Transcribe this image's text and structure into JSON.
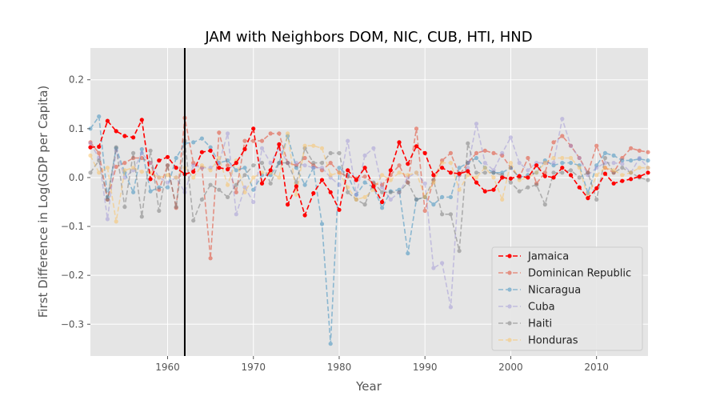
{
  "chart_data": {
    "type": "line",
    "title": "JAM with Neighbors DOM, NIC, CUB, HTI, HND",
    "xlabel": "Year",
    "ylabel": "First Difference in Log(GDP per Capita)",
    "xlim": [
      1951,
      2016
    ],
    "ylim": [
      -0.365,
      0.265
    ],
    "xticks": [
      1960,
      1970,
      1980,
      1990,
      2000,
      2010
    ],
    "yticks": [
      -0.3,
      -0.2,
      -0.1,
      0.0,
      0.1,
      0.2
    ],
    "xtick_labels": [
      "1960",
      "1970",
      "1980",
      "1990",
      "2000",
      "2010"
    ],
    "ytick_labels": [
      "−0.3",
      "−0.2",
      "−0.1",
      "0.0",
      "0.1",
      "0.2"
    ],
    "vline_x": 1962,
    "grid": true,
    "legend_position": "lower-right",
    "x": [
      1951,
      1952,
      1953,
      1954,
      1955,
      1956,
      1957,
      1958,
      1959,
      1960,
      1961,
      1962,
      1963,
      1964,
      1965,
      1966,
      1967,
      1968,
      1969,
      1970,
      1971,
      1972,
      1973,
      1974,
      1975,
      1976,
      1977,
      1978,
      1979,
      1980,
      1981,
      1982,
      1983,
      1984,
      1985,
      1986,
      1987,
      1988,
      1989,
      1990,
      1991,
      1992,
      1993,
      1994,
      1995,
      1996,
      1997,
      1998,
      1999,
      2000,
      2001,
      2002,
      2003,
      2004,
      2005,
      2006,
      2007,
      2008,
      2009,
      2010,
      2011,
      2012,
      2013,
      2014,
      2015,
      2016
    ],
    "series": [
      {
        "name": "Jamaica",
        "color": "#ff0000",
        "opacity": 1.0,
        "values": [
          0.062,
          0.063,
          0.116,
          0.095,
          0.085,
          0.082,
          0.118,
          -0.003,
          0.035,
          0.042,
          0.02,
          0.007,
          0.012,
          0.052,
          0.055,
          0.02,
          0.017,
          0.03,
          0.058,
          0.1,
          -0.012,
          0.015,
          0.068,
          -0.055,
          -0.018,
          -0.077,
          -0.032,
          -0.005,
          -0.03,
          -0.066,
          0.015,
          -0.005,
          0.02,
          -0.018,
          -0.05,
          0.015,
          0.072,
          0.028,
          0.064,
          0.05,
          0.005,
          0.02,
          0.01,
          0.008,
          0.013,
          -0.01,
          -0.028,
          -0.025,
          0.0,
          -0.002,
          0.003,
          0.0,
          0.025,
          0.003,
          0.0,
          0.02,
          0.005,
          -0.02,
          -0.042,
          -0.022,
          0.008,
          -0.012,
          -0.007,
          -0.003,
          0.002,
          0.01
        ]
      },
      {
        "name": "Dominican Republic",
        "color": "#e24a33",
        "opacity": 0.55,
        "values": [
          0.072,
          0.05,
          -0.045,
          0.022,
          0.03,
          0.04,
          0.04,
          0.03,
          -0.025,
          0.025,
          -0.062,
          0.122,
          0.03,
          0.02,
          -0.165,
          0.092,
          0.025,
          -0.03,
          0.075,
          0.075,
          0.075,
          0.09,
          0.09,
          0.03,
          0.025,
          0.04,
          0.025,
          0.015,
          0.03,
          0.01,
          0.002,
          -0.002,
          0.002,
          -0.012,
          -0.015,
          0.005,
          0.025,
          -0.01,
          0.1,
          -0.068,
          -0.005,
          0.035,
          0.05,
          0.005,
          0.03,
          0.05,
          0.055,
          0.05,
          0.045,
          0.02,
          0.0,
          0.04,
          -0.012,
          0.01,
          0.072,
          0.085,
          0.065,
          0.04,
          0.01,
          0.065,
          0.02,
          0.01,
          0.04,
          0.06,
          0.055,
          0.052
        ]
      },
      {
        "name": "Nicaragua",
        "color": "#348abd",
        "opacity": 0.5,
        "values": [
          0.1,
          0.125,
          -0.04,
          0.06,
          0.01,
          -0.03,
          0.058,
          -0.028,
          -0.02,
          -0.02,
          0.04,
          0.07,
          0.072,
          0.08,
          0.062,
          0.03,
          0.035,
          0.015,
          0.02,
          -0.025,
          0.005,
          0.005,
          0.03,
          0.085,
          0.02,
          -0.015,
          0.02,
          -0.095,
          -0.34,
          0.02,
          0.005,
          -0.035,
          -0.01,
          -0.02,
          -0.062,
          -0.028,
          -0.025,
          -0.155,
          -0.045,
          -0.04,
          -0.055,
          -0.04,
          -0.04,
          0.02,
          0.03,
          0.04,
          0.02,
          0.01,
          0.01,
          0.02,
          0.0,
          0.005,
          0.01,
          0.035,
          0.025,
          0.03,
          0.03,
          0.025,
          -0.032,
          0.025,
          0.05,
          0.045,
          0.035,
          0.035,
          0.038,
          0.035
        ]
      },
      {
        "name": "Cuba",
        "color": "#988ed5",
        "opacity": 0.45,
        "values": [
          0.07,
          0.04,
          -0.085,
          0.055,
          0.0,
          0.015,
          0.05,
          0.03,
          0.0,
          -0.01,
          0.0,
          -0.03,
          0.025,
          0.02,
          0.02,
          0.03,
          0.09,
          -0.075,
          -0.02,
          -0.05,
          0.06,
          0.03,
          0.06,
          0.03,
          0.03,
          0.025,
          0.02,
          0.02,
          0.0,
          -0.015,
          0.075,
          -0.035,
          0.045,
          0.06,
          -0.02,
          -0.045,
          -0.03,
          0.0,
          0.01,
          -0.012,
          -0.185,
          -0.175,
          -0.265,
          0.005,
          0.02,
          0.11,
          0.03,
          0.015,
          0.05,
          0.082,
          0.03,
          0.015,
          0.03,
          0.03,
          0.03,
          0.12,
          0.065,
          0.04,
          0.005,
          0.02,
          0.03,
          0.03,
          0.028,
          0.01,
          0.04,
          0.02
        ]
      },
      {
        "name": "Haiti",
        "color": "#777777",
        "opacity": 0.5,
        "values": [
          0.01,
          0.035,
          -0.045,
          0.062,
          -0.06,
          0.05,
          -0.08,
          0.055,
          -0.068,
          0.025,
          -0.06,
          0.075,
          -0.088,
          -0.045,
          -0.015,
          -0.025,
          -0.04,
          -0.015,
          0.005,
          0.025,
          0.03,
          -0.012,
          0.03,
          0.03,
          -0.01,
          0.06,
          0.03,
          0.03,
          0.05,
          0.05,
          -0.03,
          -0.045,
          -0.055,
          -0.01,
          -0.03,
          -0.03,
          -0.03,
          -0.01,
          -0.045,
          -0.04,
          -0.005,
          -0.075,
          -0.075,
          -0.15,
          0.07,
          0.01,
          0.01,
          0.01,
          0.005,
          -0.01,
          -0.028,
          -0.02,
          -0.015,
          -0.055,
          0.01,
          0.01,
          0.015,
          0.0,
          0.01,
          -0.045,
          0.04,
          0.01,
          0.02,
          0.01,
          0.0,
          -0.005
        ]
      },
      {
        "name": "Honduras",
        "color": "#fbc15e",
        "opacity": 0.5,
        "values": [
          0.045,
          0.01,
          0.02,
          -0.09,
          0.015,
          0.02,
          0.012,
          0.01,
          0.0,
          0.005,
          0.0,
          0.02,
          0.0,
          0.025,
          0.015,
          0.04,
          -0.015,
          0.035,
          -0.03,
          0.0,
          0.01,
          0.01,
          0.0,
          0.09,
          -0.035,
          0.065,
          0.065,
          0.06,
          0.005,
          0.01,
          -0.02,
          -0.045,
          -0.04,
          -0.025,
          0.005,
          -0.005,
          0.01,
          0.005,
          0.01,
          -0.04,
          -0.01,
          0.03,
          0.03,
          -0.025,
          0.005,
          0.0,
          0.02,
          0.0,
          -0.045,
          0.03,
          -0.005,
          0.0,
          0.01,
          0.03,
          0.04,
          0.04,
          0.04,
          0.02,
          -0.04,
          0.005,
          0.02,
          0.015,
          0.005,
          0.01,
          0.02,
          0.02
        ]
      }
    ]
  }
}
